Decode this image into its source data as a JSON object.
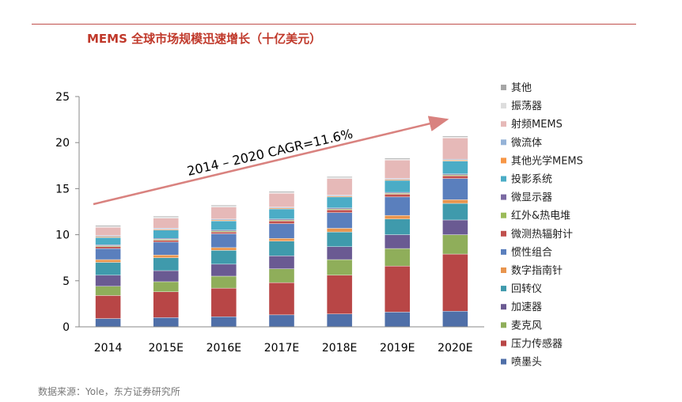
{
  "title": "MEMS 全球市场规模迅速增长（十亿美元）",
  "source": "数据来源：Yole，东方证券研究所",
  "chart_data": {
    "type": "bar",
    "stacked": true,
    "title": "MEMS 全球市场规模迅速增长（十亿美元）",
    "xlabel": "",
    "ylabel": "",
    "ylim": [
      0,
      25
    ],
    "yticks": [
      0,
      5,
      10,
      15,
      20,
      25
    ],
    "categories": [
      "2014",
      "2015E",
      "2016E",
      "2017E",
      "2018E",
      "2019E",
      "2020E"
    ],
    "annotation": "2014 – 2020 CAGR=11.6%",
    "legend_position": "right",
    "series": [
      {
        "name": "喷墨头",
        "color": "#4f6fa8",
        "values": [
          0.9,
          1.0,
          1.1,
          1.3,
          1.4,
          1.6,
          1.7
        ]
      },
      {
        "name": "压力传感器",
        "color": "#b84646",
        "values": [
          2.5,
          2.8,
          3.1,
          3.5,
          4.2,
          5.0,
          6.2
        ]
      },
      {
        "name": "麦克风",
        "color": "#8fae5a",
        "values": [
          1.0,
          1.1,
          1.3,
          1.5,
          1.7,
          1.9,
          2.1
        ]
      },
      {
        "name": "加速器",
        "color": "#6a5a92",
        "values": [
          1.2,
          1.2,
          1.3,
          1.4,
          1.4,
          1.5,
          1.6
        ]
      },
      {
        "name": "回转仪",
        "color": "#3f9aac",
        "values": [
          1.4,
          1.4,
          1.5,
          1.6,
          1.6,
          1.7,
          1.8
        ]
      },
      {
        "name": "数字指南针",
        "color": "#e8954e",
        "values": [
          0.3,
          0.3,
          0.3,
          0.3,
          0.4,
          0.4,
          0.4
        ]
      },
      {
        "name": "惯性组合",
        "color": "#5a7fbd",
        "values": [
          1.2,
          1.4,
          1.5,
          1.6,
          1.7,
          2.0,
          2.3
        ]
      },
      {
        "name": "微测热辐射计",
        "color": "#c0504d",
        "values": [
          0.2,
          0.2,
          0.2,
          0.3,
          0.3,
          0.3,
          0.3
        ]
      },
      {
        "name": "红外&热电堆",
        "color": "#9bbb59",
        "values": [
          0.1,
          0.1,
          0.1,
          0.1,
          0.1,
          0.1,
          0.1
        ]
      },
      {
        "name": "微显示器",
        "color": "#7b6aa3",
        "values": [
          0.1,
          0.1,
          0.1,
          0.1,
          0.1,
          0.1,
          0.1
        ]
      },
      {
        "name": "投影系统",
        "color": "#4bacc6",
        "values": [
          0.8,
          0.9,
          1.0,
          1.1,
          1.2,
          1.3,
          1.4
        ]
      },
      {
        "name": "其他光学MEMS",
        "color": "#f79646",
        "values": [
          0.1,
          0.1,
          0.1,
          0.1,
          0.1,
          0.1,
          0.1
        ]
      },
      {
        "name": "微流体",
        "color": "#95b3d7",
        "values": [
          0.1,
          0.1,
          0.1,
          0.1,
          0.1,
          0.1,
          0.1
        ]
      },
      {
        "name": "射频MEMS",
        "color": "#e6b9b8",
        "values": [
          0.9,
          1.1,
          1.3,
          1.5,
          1.8,
          2.0,
          2.3
        ]
      },
      {
        "name": "振荡器",
        "color": "#dddddd",
        "values": [
          0.1,
          0.1,
          0.1,
          0.1,
          0.1,
          0.1,
          0.1
        ]
      },
      {
        "name": "其他",
        "color": "#a6a6a6",
        "values": [
          0.1,
          0.1,
          0.1,
          0.1,
          0.1,
          0.1,
          0.1
        ]
      }
    ]
  }
}
